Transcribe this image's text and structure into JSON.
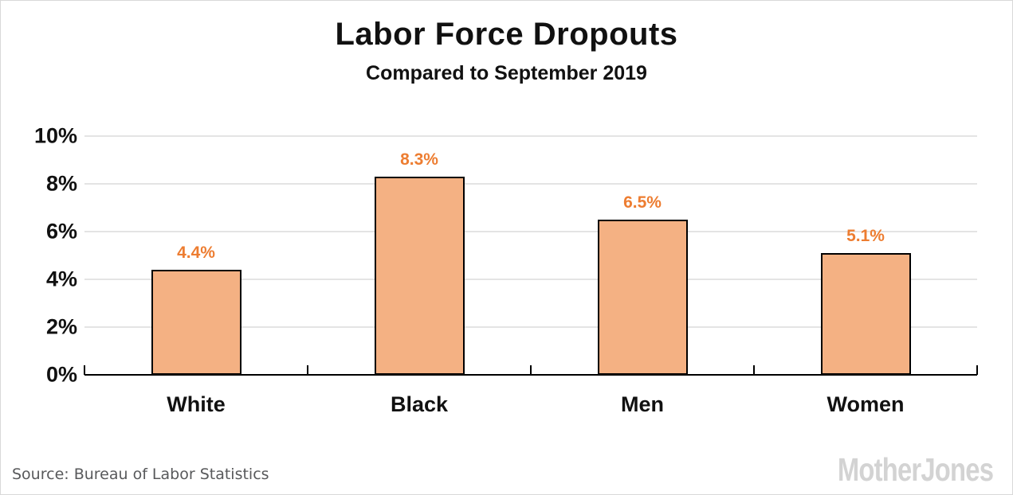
{
  "page": {
    "background": "#ffffff",
    "border_color": "#d9d9d9"
  },
  "header": {
    "title": "Labor Force Dropouts",
    "subtitle": "Compared to September 2019"
  },
  "chart_data": {
    "type": "bar",
    "title": "Labor Force Dropouts",
    "subtitle": "Compared to September 2019",
    "categories": [
      "White",
      "Black",
      "Men",
      "Women"
    ],
    "values": [
      4.4,
      8.3,
      6.5,
      5.1
    ],
    "data_labels": [
      "4.4%",
      "8.3%",
      "6.5%",
      "5.1%"
    ],
    "xlabel": "",
    "ylabel": "",
    "ylim": [
      0,
      10
    ],
    "yticks": [
      0,
      2,
      4,
      6,
      8,
      10
    ],
    "ytick_labels": [
      "0%",
      "2%",
      "4%",
      "6%",
      "8%",
      "10%"
    ],
    "grid": "horizontal",
    "legend": "none",
    "bar_fill": "#f4b183",
    "bar_border": "#000000",
    "data_label_color": "#ed7d31",
    "gridline_color": "#e4e4e4",
    "axis_color": "#000000"
  },
  "footer": {
    "source": "Source: Bureau of Labor Statistics",
    "logo": "MotherJones"
  }
}
